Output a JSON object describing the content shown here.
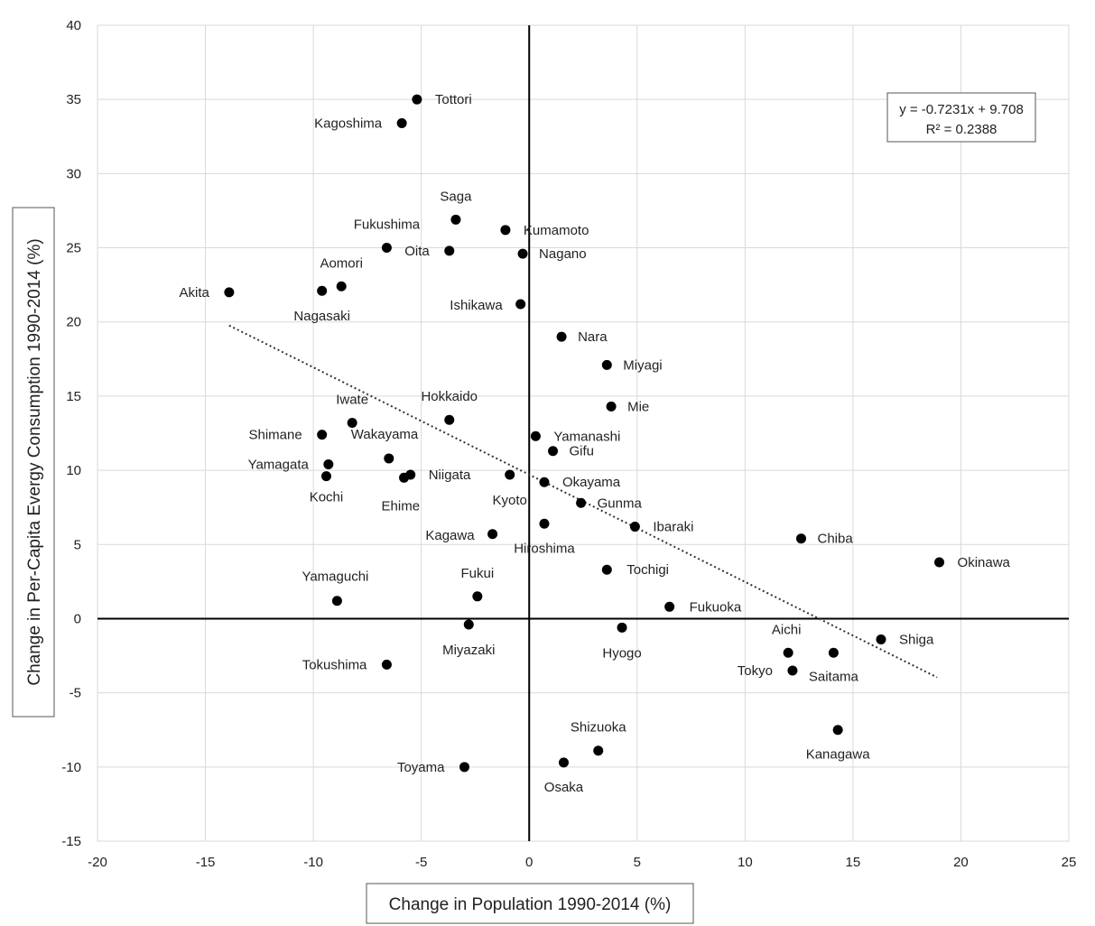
{
  "chart_data": {
    "type": "scatter",
    "xlabel": "Change in Population 1990-2014 (%)",
    "ylabel": "Change in Per-Capita Evergy Consumption 1990-2014 (%)",
    "xlim": [
      -20,
      25
    ],
    "ylim": [
      -15,
      40
    ],
    "xticks": [
      -20,
      -15,
      -10,
      -5,
      0,
      5,
      10,
      15,
      20,
      25
    ],
    "yticks": [
      -15,
      -10,
      -5,
      0,
      5,
      10,
      15,
      20,
      25,
      30,
      35,
      40
    ],
    "grid": true,
    "trendline": {
      "style": "dotted",
      "slope": -0.7231,
      "intercept": 9.708,
      "x_range": [
        -13.9,
        18.9
      ],
      "equation": "y = -0.7231x  + 9.708",
      "r_squared": "R² = 0.2388",
      "box_position": "top-right"
    },
    "points": [
      {
        "name": "Tottori",
        "x": -5.2,
        "y": 35.0
      },
      {
        "name": "Kagoshima",
        "x": -5.9,
        "y": 33.4
      },
      {
        "name": "Saga",
        "x": -3.4,
        "y": 26.9
      },
      {
        "name": "Kumamoto",
        "x": -1.1,
        "y": 26.2
      },
      {
        "name": "Fukushima",
        "x": -6.6,
        "y": 25.0
      },
      {
        "name": "Oita",
        "x": -3.7,
        "y": 24.8
      },
      {
        "name": "Nagano",
        "x": -0.3,
        "y": 24.6
      },
      {
        "name": "Aomori",
        "x": -8.7,
        "y": 22.4
      },
      {
        "name": "Akita",
        "x": -13.9,
        "y": 22.0
      },
      {
        "name": "Nagasaki",
        "x": -9.6,
        "y": 22.1
      },
      {
        "name": "Ishikawa",
        "x": -0.4,
        "y": 21.2
      },
      {
        "name": "Nara",
        "x": 1.5,
        "y": 19.0
      },
      {
        "name": "Miyagi",
        "x": 3.6,
        "y": 17.1
      },
      {
        "name": "Mie",
        "x": 3.8,
        "y": 14.3
      },
      {
        "name": "Hokkaido",
        "x": -3.7,
        "y": 13.4
      },
      {
        "name": "Iwate",
        "x": -8.2,
        "y": 13.2
      },
      {
        "name": "Shimane",
        "x": -9.6,
        "y": 12.4
      },
      {
        "name": "Yamanashi",
        "x": 0.3,
        "y": 12.3
      },
      {
        "name": "Gifu",
        "x": 1.1,
        "y": 11.3
      },
      {
        "name": "Wakayama",
        "x": -6.5,
        "y": 10.8
      },
      {
        "name": "Yamagata",
        "x": -9.3,
        "y": 10.4
      },
      {
        "name": "Niigata",
        "x": -5.5,
        "y": 9.7
      },
      {
        "name": "Ehime",
        "x": -5.8,
        "y": 9.5
      },
      {
        "name": "Kochi",
        "x": -9.4,
        "y": 9.6
      },
      {
        "name": "Kyoto",
        "x": -0.9,
        "y": 9.7
      },
      {
        "name": "Okayama",
        "x": 0.7,
        "y": 9.2
      },
      {
        "name": "Gunma",
        "x": 2.4,
        "y": 7.8
      },
      {
        "name": "Hiroshima",
        "x": 0.7,
        "y": 6.4
      },
      {
        "name": "Ibaraki",
        "x": 4.9,
        "y": 6.2
      },
      {
        "name": "Kagawa",
        "x": -1.7,
        "y": 5.7
      },
      {
        "name": "Chiba",
        "x": 12.6,
        "y": 5.4
      },
      {
        "name": "Okinawa",
        "x": 19.0,
        "y": 3.8
      },
      {
        "name": "Tochigi",
        "x": 3.6,
        "y": 3.3
      },
      {
        "name": "Fukui",
        "x": -2.4,
        "y": 1.5
      },
      {
        "name": "Yamaguchi",
        "x": -8.9,
        "y": 1.2
      },
      {
        "name": "Fukuoka",
        "x": 6.5,
        "y": 0.8
      },
      {
        "name": "Miyazaki",
        "x": -2.8,
        "y": -0.4
      },
      {
        "name": "Hyogo",
        "x": 4.3,
        "y": -0.6
      },
      {
        "name": "Shiga",
        "x": 16.3,
        "y": -1.4
      },
      {
        "name": "Aichi",
        "x": 12.0,
        "y": -2.3
      },
      {
        "name": "Saitama",
        "x": 14.1,
        "y": -2.3
      },
      {
        "name": "Tokyo",
        "x": 12.2,
        "y": -3.5
      },
      {
        "name": "Tokushima",
        "x": -6.6,
        "y": -3.1
      },
      {
        "name": "Kanagawa",
        "x": 14.3,
        "y": -7.5
      },
      {
        "name": "Shizuoka",
        "x": 3.2,
        "y": -8.9
      },
      {
        "name": "Osaka",
        "x": 1.6,
        "y": -9.7
      },
      {
        "name": "Toyama",
        "x": -3.0,
        "y": -10.0
      }
    ]
  }
}
